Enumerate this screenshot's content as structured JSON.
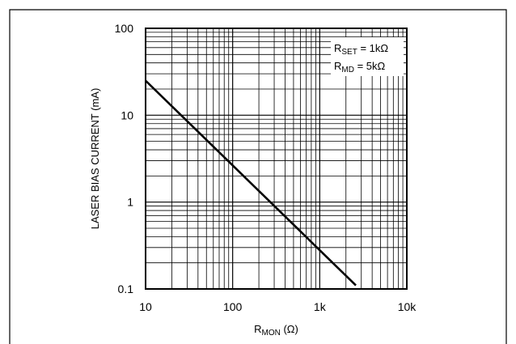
{
  "chart_data": {
    "type": "line",
    "x_scale": "log",
    "y_scale": "log",
    "xlim": [
      10,
      10000
    ],
    "ylim": [
      0.1,
      100
    ],
    "grid": true,
    "xticks": [
      "10",
      "100",
      "1k",
      "10k"
    ],
    "yticks": [
      "100",
      "10",
      "1",
      "0.1"
    ],
    "xlabel": {
      "main": "R",
      "sub": "MON",
      "tail": " (Ω)"
    },
    "ylabel": "LASER BIAS CURRENT (mA)",
    "legend_placement": "top-right",
    "legend": [
      {
        "main": "R",
        "sub": "SET",
        "tail": " = 1kΩ"
      },
      {
        "main": "R",
        "sub": "MD",
        "tail": " = 5kΩ"
      }
    ],
    "series": [
      {
        "x": [
          10,
          2600
        ],
        "y": [
          25,
          0.11
        ]
      }
    ]
  }
}
